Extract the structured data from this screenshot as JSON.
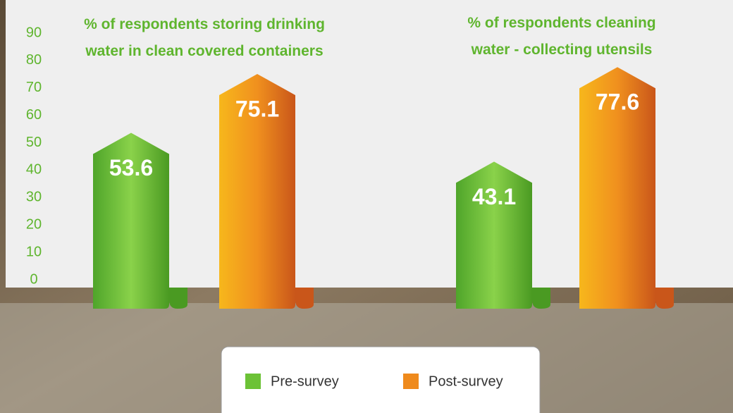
{
  "chart_data": {
    "type": "bar",
    "categories": [
      "% of respondents storing drinking water in clean covered containers",
      "% of respondents cleaning water - collecting utensils"
    ],
    "series": [
      {
        "name": "Pre-survey",
        "color": "#6cc236",
        "values": [
          53.6,
          43.1
        ]
      },
      {
        "name": "Post-survey",
        "color": "#ef8a1c",
        "values": [
          75.1,
          77.6
        ]
      }
    ],
    "ylim": [
      0,
      90
    ],
    "yticks": [
      0,
      10,
      20,
      30,
      40,
      50,
      60,
      70,
      80,
      90
    ]
  }
}
